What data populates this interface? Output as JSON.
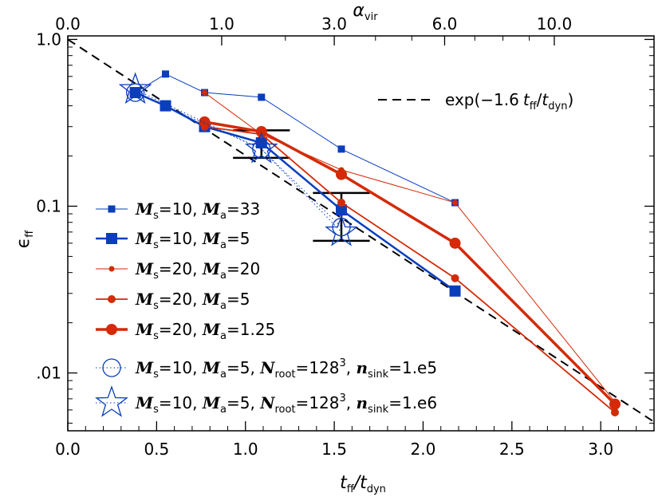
{
  "chart_data": {
    "type": "line",
    "x_axis": {
      "label_main": "t",
      "label_sub1": "ff",
      "label_mid": "/t",
      "label_sub2": "dyn",
      "range": [
        0.0,
        3.3
      ],
      "ticks": [
        0.0,
        0.5,
        1.0,
        1.5,
        2.0,
        2.5,
        3.0
      ],
      "tick_labels": [
        "0.0",
        "0.5",
        "1.0",
        "1.5",
        "2.0",
        "2.5",
        "3.0"
      ]
    },
    "top_axis": {
      "label_main": "α",
      "label_sub": "vir",
      "ticks": [
        0.0,
        0.8662,
        1.5,
        2.1213,
        2.7386
      ],
      "tick_labels": [
        "0.0",
        "1.0",
        "3.0",
        "6.0",
        "10.0"
      ]
    },
    "y_axis": {
      "label_main": "ϵ",
      "label_sub": "ff",
      "scale": "log",
      "range": [
        0.0045,
        1.05
      ],
      "ticks": [
        0.01,
        0.1,
        1.0
      ],
      "tick_labels": [
        ".01",
        "0.1",
        "1.0"
      ]
    },
    "reference_line": {
      "label": "exp(−1.6 t_ff/t_dyn)",
      "label_prefix": "exp(−1.6",
      "label_t1": "t",
      "label_sub1": "ff",
      "label_t2": "t",
      "label_sub2": "dyn",
      "label_suffix": ")",
      "coefficient": -1.6,
      "style": "dashed",
      "color": "#000000"
    },
    "series": [
      {
        "name": "Ms=10, Ma=33",
        "ms": "10",
        "ma": "33",
        "color": "#0a3ebd",
        "marker": "square-small",
        "line_width": 1,
        "line_style": "solid",
        "x": [
          0.38,
          0.55,
          0.77,
          1.09,
          1.54,
          2.18
        ],
        "y": [
          0.48,
          0.62,
          0.48,
          0.45,
          0.22,
          0.105
        ]
      },
      {
        "name": "Ms=10, Ma=5",
        "ms": "10",
        "ma": "5",
        "color": "#0a3ebd",
        "marker": "square-large",
        "line_width": 2.5,
        "line_style": "solid",
        "x": [
          0.38,
          0.55,
          0.77,
          1.09,
          1.54,
          2.18
        ],
        "y": [
          0.48,
          0.4,
          0.3,
          0.24,
          0.095,
          0.031
        ]
      },
      {
        "name": "Ms=20, Ma=20",
        "ms": "20",
        "ma": "20",
        "color": "#d42a07",
        "marker": "circle-small",
        "line_width": 1,
        "line_style": "solid",
        "x": [
          0.77,
          1.09,
          1.54,
          2.18,
          3.08
        ],
        "y": [
          0.48,
          0.27,
          0.165,
          0.105,
          0.0067
        ]
      },
      {
        "name": "Ms=20, Ma=5",
        "ms": "20",
        "ma": "5",
        "color": "#d42a07",
        "marker": "circle-medium",
        "line_width": 1.8,
        "line_style": "solid",
        "x": [
          0.77,
          1.09,
          1.54,
          2.18,
          3.08
        ],
        "y": [
          0.3,
          0.27,
          0.105,
          0.037,
          0.0058
        ]
      },
      {
        "name": "Ms=20, Ma=1.25",
        "ms": "20",
        "ma": "1.25",
        "color": "#d42a07",
        "marker": "circle-large",
        "line_width": 3.5,
        "line_style": "solid",
        "x": [
          0.77,
          1.09,
          1.54,
          2.18,
          3.08
        ],
        "y": [
          0.32,
          0.28,
          0.155,
          0.06,
          0.0065
        ]
      },
      {
        "name": "Ms=10, Ma=5, Nroot=128^3, nsink=1.e5",
        "ms": "10",
        "ma": "5",
        "nroot_base": "128",
        "nroot_exp": "3",
        "nsink": "1.e5",
        "color": "#0a3ebd",
        "marker": "circle-open",
        "line_width": 1,
        "line_style": "dotted",
        "x": [
          0.38,
          1.09,
          1.54
        ],
        "y": [
          0.48,
          0.22,
          0.075
        ]
      },
      {
        "name": "Ms=10, Ma=5, Nroot=128^3, nsink=1.e6",
        "ms": "10",
        "ma": "5",
        "nroot_base": "128",
        "nroot_exp": "3",
        "nsink": "1.e6",
        "color": "#0a3ebd",
        "marker": "star-open",
        "line_width": 1,
        "line_style": "dotted",
        "x": [
          0.38,
          1.09,
          1.54
        ],
        "y": [
          0.5,
          0.22,
          0.07
        ]
      }
    ],
    "error_bars": [
      {
        "x": 1.09,
        "ylow": 0.195,
        "yhigh": 0.285,
        "xhalfwidth": 0.16
      },
      {
        "x": 1.54,
        "ylow": 0.062,
        "yhigh": 0.12,
        "xhalfwidth": 0.16
      }
    ],
    "legend_placement": "bottom-left",
    "grid": false
  }
}
